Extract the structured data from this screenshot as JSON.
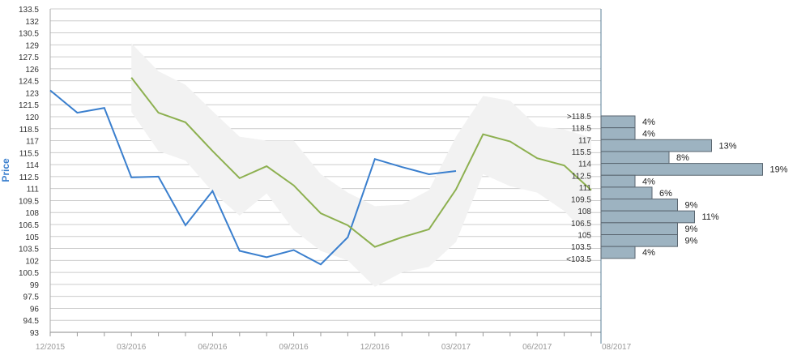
{
  "chart_data": {
    "type": "line",
    "ylabel": "Price",
    "ylim": [
      93,
      133.5
    ],
    "y_ticks": [
      "133.5",
      "132",
      "130.5",
      "129",
      "127.5",
      "126",
      "124.5",
      "123",
      "121.5",
      "120",
      "118.5",
      "117",
      "115.5",
      "114",
      "112.5",
      "111",
      "109.5",
      "108",
      "106.5",
      "105",
      "103.5",
      "102",
      "100.5",
      "99",
      "97.5",
      "96",
      "94.5",
      "93"
    ],
    "x_ticks": [
      "12/2015",
      "03/2016",
      "06/2016",
      "09/2016",
      "12/2016",
      "03/2017",
      "06/2017",
      "08/2017"
    ],
    "grid": true,
    "x": [
      "2015-12",
      "2016-01",
      "2016-02",
      "2016-03",
      "2016-04",
      "2016-05",
      "2016-06",
      "2016-07",
      "2016-08",
      "2016-09",
      "2016-10",
      "2016-11",
      "2016-12",
      "2017-01",
      "2017-02",
      "2017-03",
      "2017-04",
      "2017-05",
      "2017-06",
      "2017-07",
      "2017-08"
    ],
    "series": [
      {
        "name": "",
        "color": "#3a7fce",
        "values": [
          123.3,
          120.5,
          121.1,
          112.4,
          112.5,
          106.4,
          110.7,
          103.2,
          102.4,
          103.3,
          101.5,
          104.9,
          114.7,
          113.7,
          112.8,
          113.2,
          null,
          null,
          null,
          null,
          null
        ]
      },
      {
        "name": "",
        "color": "#8db050",
        "values": [
          null,
          null,
          null,
          124.9,
          120.5,
          119.3,
          115.7,
          112.3,
          113.8,
          111.4,
          107.9,
          106.4,
          103.7,
          104.9,
          105.9,
          110.9,
          117.8,
          116.9,
          114.8,
          113.9,
          110.8
        ]
      }
    ],
    "band": {
      "color": "#f2f2f2",
      "upper": [
        null,
        null,
        null,
        129.2,
        125.7,
        124.0,
        120.7,
        117.5,
        117.0,
        117.0,
        112.8,
        110.5,
        108.8,
        109.0,
        110.8,
        117.5,
        122.6,
        122.0,
        118.8,
        118.4,
        117.4
      ],
      "lower": [
        null,
        null,
        null,
        120.6,
        115.7,
        114.5,
        110.6,
        107.6,
        110.4,
        105.8,
        103.2,
        102.0,
        98.7,
        100.5,
        101.2,
        104.3,
        112.8,
        111.3,
        110.5,
        108.2,
        104.6
      ]
    },
    "histogram": {
      "bins": [
        {
          "label": ">118.5",
          "pct_label": "4%",
          "value": 4
        },
        {
          "label": "118.5",
          "pct_label": "4%",
          "value": 4
        },
        {
          "label": "117",
          "pct_label": "13%",
          "value": 13
        },
        {
          "label": "115.5",
          "pct_label": "8%",
          "value": 8
        },
        {
          "label": "114",
          "pct_label": "19%",
          "value": 19
        },
        {
          "label": "112.5",
          "pct_label": "4%",
          "value": 4
        },
        {
          "label": "111",
          "pct_label": "6%",
          "value": 6
        },
        {
          "label": "109.5",
          "pct_label": "9%",
          "value": 9
        },
        {
          "label": "108",
          "pct_label": "11%",
          "value": 11
        },
        {
          "label": "106.5",
          "pct_label": "9%",
          "value": 9
        },
        {
          "label": "105",
          "pct_label": "9%",
          "value": 9
        },
        {
          "label": "103.5",
          "pct_label": "4%",
          "value": 4
        },
        {
          "label": "<103.5",
          "pct_label": "",
          "value": 0
        }
      ],
      "bar_color": "#9db3c1",
      "bar_border": "#5a6670"
    },
    "colors": {
      "grid": "#cccccc",
      "axis_title": "#3a7fce",
      "divider": "#5a7f97"
    }
  }
}
